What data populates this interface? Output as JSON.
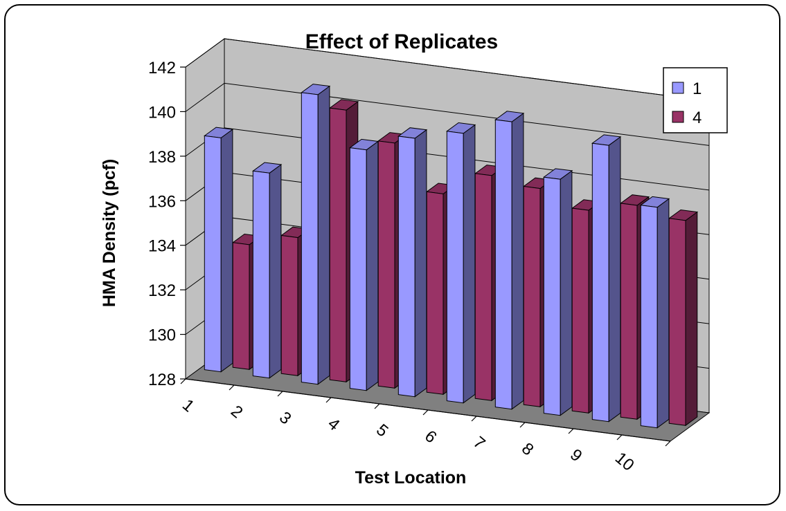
{
  "chart_data": {
    "type": "bar",
    "style": "3d-clustered-column",
    "title": "Effect of Replicates",
    "xlabel": "Test Location",
    "ylabel": "HMA Density (pcf)",
    "categories": [
      "1",
      "2",
      "3",
      "4",
      "5",
      "6",
      "7",
      "8",
      "9",
      "10"
    ],
    "series": [
      {
        "name": "1",
        "color": "#9999FF",
        "values": [
          138.5,
          137.2,
          141.0,
          138.8,
          139.6,
          140.1,
          140.9,
          138.6,
          140.4,
          137.9
        ]
      },
      {
        "name": "4",
        "color": "#993366",
        "values": [
          133.6,
          134.2,
          140.2,
          139.0,
          137.0,
          138.1,
          137.8,
          137.1,
          137.6,
          137.2
        ]
      }
    ],
    "ylim": [
      128,
      142
    ],
    "yticks": [
      "128",
      "130",
      "132",
      "134",
      "136",
      "138",
      "140",
      "142"
    ],
    "grid": true,
    "wall_color": "#C0C0C0",
    "floor_color": "#808080",
    "legend_position": "top-right"
  }
}
